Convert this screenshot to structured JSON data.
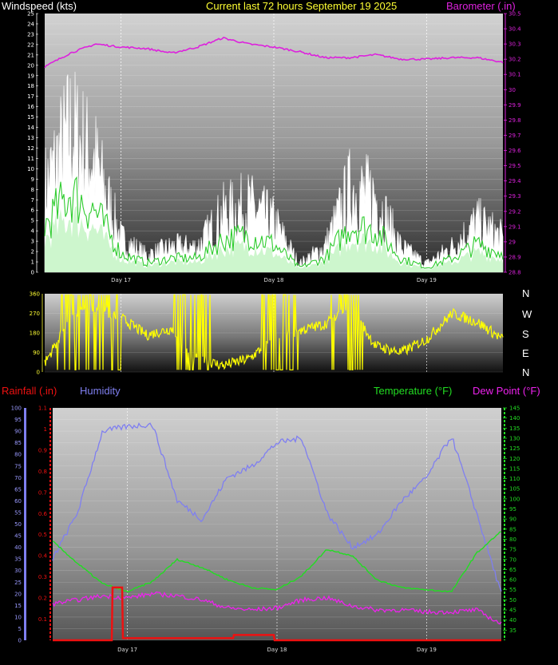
{
  "header": {
    "windspeed": "Windspeed (kts)",
    "current": "Current last 72 hours September 19 2025",
    "barometer": "Barometer (.in)",
    "rainfall": "Rainfall (.in)",
    "humidity": "Humidity",
    "temperature": "Temperature (°F)",
    "dewpoint": "Dew Point (°F)"
  },
  "compass": [
    "N",
    "W",
    "S",
    "E",
    "N"
  ],
  "colors": {
    "windspeed": "#ffffff",
    "windavg": "#2ecc2e",
    "windfill": "#c8f5c8",
    "barometer": "#dd22dd",
    "direction": "#ffff00",
    "rainfall": "#ee1111",
    "humidity": "#7f7ff0",
    "temperature": "#22dd22",
    "dewpoint": "#ee22ee"
  },
  "chart_data": [
    {
      "type": "area",
      "title": "Current last 72 hours September 19 2025",
      "xlabel": "",
      "x_ticks": [
        "Day 17",
        "Day 18",
        "Day 19"
      ],
      "y_left": {
        "label": "Windspeed (kts)",
        "lim": [
          0,
          25
        ],
        "ticks": [
          0,
          1,
          2,
          3,
          4,
          5,
          6,
          7,
          8,
          9,
          10,
          11,
          12,
          13,
          14,
          15,
          16,
          17,
          18,
          19,
          20,
          21,
          22,
          23,
          24,
          25
        ]
      },
      "y_right": {
        "label": "Barometer (.in)",
        "lim": [
          28.8,
          30.5
        ],
        "ticks": [
          "28.8",
          "28.9",
          "29",
          "29.1",
          "29.2",
          "29.3",
          "29.4",
          "29.5",
          "29.6",
          "29.7",
          "29.8",
          "29.9",
          "30",
          "30.1",
          "30.2",
          "30.3",
          "30.4",
          "30.5"
        ]
      },
      "x": [
        0,
        4,
        8,
        12,
        16,
        20,
        24,
        28,
        32,
        36,
        40,
        44,
        48,
        52,
        56,
        60,
        64,
        68,
        72
      ],
      "series": [
        {
          "name": "Windspeed (kts)",
          "axis": "left",
          "values": [
            10,
            17,
            13,
            4,
            2,
            3,
            3,
            7,
            8,
            6,
            1,
            3,
            10,
            9,
            3,
            1,
            3,
            6,
            4
          ]
        },
        {
          "name": "Barometer (.in)",
          "axis": "right",
          "values": [
            30.15,
            30.24,
            30.3,
            30.28,
            30.27,
            30.24,
            30.28,
            30.34,
            30.3,
            30.28,
            30.25,
            30.21,
            30.21,
            30.23,
            30.2,
            30.2,
            30.21,
            30.21,
            30.18
          ]
        }
      ]
    },
    {
      "type": "line",
      "title": "",
      "y_left": {
        "lim": [
          0,
          360
        ],
        "ticks": [
          0,
          90,
          180,
          270,
          360
        ]
      },
      "compass": [
        "N",
        "W",
        "S",
        "E",
        "N"
      ],
      "x": [
        0,
        4,
        8,
        12,
        16,
        20,
        24,
        28,
        32,
        36,
        40,
        44,
        48,
        52,
        56,
        60,
        64,
        68,
        72
      ],
      "series": [
        {
          "name": "Wind direction",
          "values": [
            40,
            250,
            300,
            250,
            170,
            200,
            60,
            30,
            60,
            150,
            190,
            220,
            300,
            120,
            90,
            150,
            270,
            230,
            150
          ]
        }
      ]
    },
    {
      "type": "line",
      "title": "",
      "y_left_rain": {
        "label": "Rainfall (.in)",
        "lim": [
          0,
          1.1
        ],
        "ticks": [
          "0.1",
          "0.2",
          "0.3",
          "0.4",
          "0.5",
          "0.6",
          "0.7",
          "0.8",
          "0.9",
          "1",
          "1.1"
        ]
      },
      "y_left_humidity": {
        "label": "Humidity",
        "lim": [
          0,
          100
        ],
        "ticks": [
          0,
          5,
          10,
          15,
          20,
          25,
          30,
          35,
          40,
          45,
          50,
          55,
          60,
          65,
          70,
          75,
          80,
          85,
          90,
          95,
          100
        ]
      },
      "y_right": {
        "label": "Temperature (°F) Dew Point (°F)",
        "lim": [
          30,
          145
        ],
        "ticks": [
          35,
          40,
          45,
          50,
          55,
          60,
          65,
          70,
          75,
          80,
          85,
          90,
          95,
          100,
          105,
          110,
          115,
          120,
          125,
          130,
          135,
          140,
          145
        ]
      },
      "x": [
        0,
        4,
        8,
        12,
        16,
        20,
        24,
        28,
        32,
        36,
        40,
        44,
        48,
        52,
        56,
        60,
        64,
        68,
        72
      ],
      "series": [
        {
          "name": "Humidity",
          "axis": "humidity",
          "values": [
            35,
            55,
            90,
            92,
            93,
            60,
            52,
            70,
            75,
            85,
            87,
            55,
            40,
            45,
            60,
            70,
            88,
            55,
            20
          ]
        },
        {
          "name": "Temperature (°F)",
          "axis": "right",
          "values": [
            79,
            68,
            58,
            54,
            59,
            70,
            66,
            60,
            56,
            55,
            62,
            75,
            72,
            60,
            56,
            55,
            54,
            73,
            84
          ]
        },
        {
          "name": "Dew Point (°F)",
          "axis": "right",
          "values": [
            48,
            50,
            52,
            51,
            53,
            52,
            50,
            46,
            45,
            46,
            50,
            51,
            47,
            45,
            45,
            44,
            44,
            45,
            38
          ]
        },
        {
          "name": "Rainfall (.in)",
          "axis": "rain",
          "values": [
            0,
            0,
            0.25,
            0.01,
            0.01,
            0.01,
            0.01,
            0.01,
            0.03,
            0.01,
            0.0,
            0.0,
            0.0,
            0.0,
            0.0,
            0.0,
            0.0,
            0.0,
            0.0
          ]
        }
      ]
    }
  ]
}
